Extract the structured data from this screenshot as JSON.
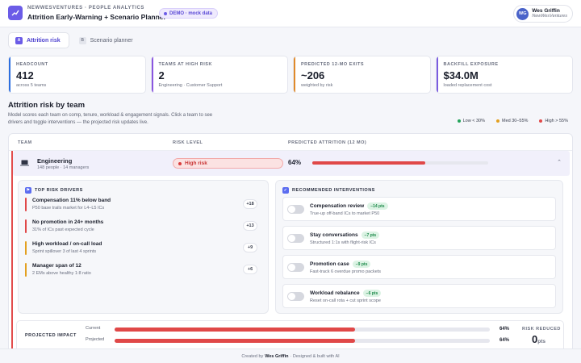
{
  "header": {
    "org": "NEWWESVENTURES · PEOPLE ANALYTICS",
    "title": "Attrition Early-Warning + Scenario Planner",
    "demo_badge": "DEMO · mock data",
    "user": {
      "initials": "WG",
      "name": "Wes Griffin",
      "company": "NewWesVentures"
    }
  },
  "tabs": [
    {
      "icon_letter": "A",
      "label": "Attrition risk",
      "active": true
    },
    {
      "icon_letter": "B",
      "label": "Scenario planner",
      "active": false
    }
  ],
  "kpis": [
    {
      "label": "HEADCOUNT",
      "value": "412",
      "sub": "across 5 teams",
      "color": "#2d6fe0"
    },
    {
      "label": "TEAMS AT HIGH RISK",
      "value": "2",
      "sub": "Engineering · Customer Support",
      "color": "#8a56e0"
    },
    {
      "label": "PREDICTED 12-MO EXITS",
      "value": "~206",
      "sub": "weighted by risk",
      "color": "#e08a2a"
    },
    {
      "label": "BACKFILL EXPOSURE",
      "value": "$34.0M",
      "sub": "loaded replacement cost",
      "color": "#7a5ce0"
    }
  ],
  "section": {
    "title": "Attrition risk by team",
    "description": "Model scores each team on comp, tenure, workload & engagement signals. Click a team to see drivers and toggle interventions — the projected risk updates live."
  },
  "legend": [
    {
      "label": "Low < 30%",
      "color": "#22a35a"
    },
    {
      "label": "Med 30–55%",
      "color": "#e3a020"
    },
    {
      "label": "High > 55%",
      "color": "#e04848"
    }
  ],
  "table": {
    "col_team": "TEAM",
    "col_risk": "RISK LEVEL",
    "col_attrition": "PREDICTED ATTRITION (12 MO)"
  },
  "team": {
    "name": "Engineering",
    "sub": "148 people · 14 managers",
    "risk_label": "High risk",
    "attrition_pct": "64%",
    "attrition_value": 0.64
  },
  "drivers": {
    "title": "TOP RISK DRIVERS",
    "icon": "flag-icon",
    "items": [
      {
        "title": "Compensation 11% below band",
        "sub": "P50 base trails market for L4–L5 ICs",
        "value": "+18",
        "color": "#e04848"
      },
      {
        "title": "No promotion in 24+ months",
        "sub": "31% of ICs past expected cycle",
        "value": "+13",
        "color": "#e04848"
      },
      {
        "title": "High workload / on-call load",
        "sub": "Sprint spillover 3 of last 4 sprints",
        "value": "+9",
        "color": "#e3a020"
      },
      {
        "title": "Manager span of 12",
        "sub": "2 EMs above healthy 1:8 ratio",
        "value": "+6",
        "color": "#e3a020"
      }
    ]
  },
  "interventions": {
    "title": "RECOMMENDED INTERVENTIONS",
    "icon": "check-icon",
    "items": [
      {
        "title": "Compensation review",
        "tag": "−14 pts",
        "sub": "True-up off-band ICs to market P50",
        "on": false
      },
      {
        "title": "Stay conversations",
        "tag": "−7 pts",
        "sub": "Structured 1:1s with flight-risk ICs",
        "on": false
      },
      {
        "title": "Promotion case",
        "tag": "−9 pts",
        "sub": "Fast-track 6 overdue promo packets",
        "on": false
      },
      {
        "title": "Workload rebalance",
        "tag": "−6 pts",
        "sub": "Reset on-call rota + cut sprint scope",
        "on": false
      }
    ]
  },
  "impact": {
    "label": "PROJECTED IMPACT",
    "current_label": "Current",
    "current_pct": "64%",
    "current_value": 0.64,
    "projected_label": "Projected",
    "projected_pct": "64%",
    "projected_value": 0.64,
    "reduced_label": "RISK REDUCED",
    "reduced_value": "0",
    "reduced_unit": "pts"
  },
  "footer": {
    "prefix": "Created by",
    "author": "Wes Griffin",
    "suffix": "· Designed & built with AI"
  }
}
